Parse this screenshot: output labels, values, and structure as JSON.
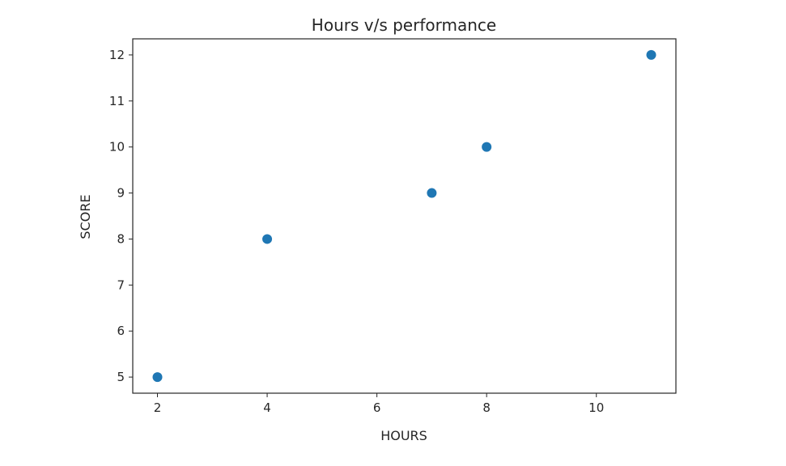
{
  "chart_data": {
    "type": "scatter",
    "title": "Hours v/s performance",
    "xlabel": "HOURS",
    "ylabel": "SCORE",
    "x": [
      2,
      4,
      7,
      8,
      11
    ],
    "y": [
      5,
      8,
      9,
      10,
      12
    ],
    "xlim": [
      1.55,
      11.45
    ],
    "ylim": [
      4.65,
      12.35
    ],
    "xticks": [
      2,
      4,
      6,
      8,
      10
    ],
    "yticks": [
      5,
      6,
      7,
      8,
      9,
      10,
      11,
      12
    ],
    "grid": false,
    "marker_color": "#1f77b4"
  }
}
